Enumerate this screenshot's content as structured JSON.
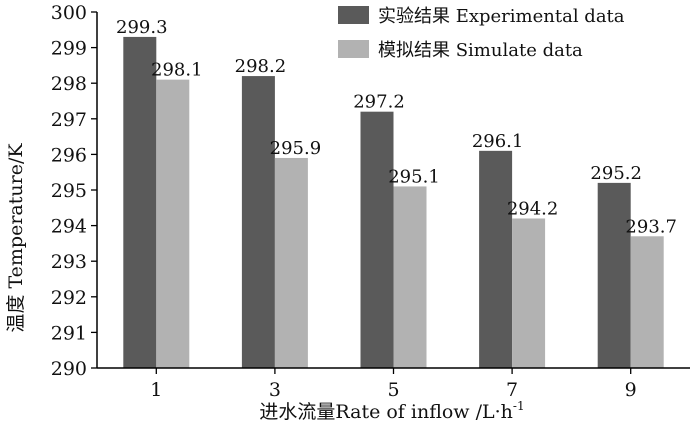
{
  "chart_data": {
    "type": "bar",
    "categories": [
      "1",
      "3",
      "5",
      "7",
      "9"
    ],
    "series": [
      {
        "name": "实验结果 Experimental data",
        "values": [
          299.3,
          298.2,
          297.2,
          296.1,
          295.2
        ],
        "color": "#5a5a5a"
      },
      {
        "name": "模拟结果 Simulate data",
        "values": [
          298.1,
          295.9,
          295.1,
          294.2,
          293.7
        ],
        "color": "#b2b2b2"
      }
    ],
    "data_labels": [
      [
        "299.3",
        "298.2",
        "297.2",
        "296.1",
        "295.2"
      ],
      [
        "298.1",
        "295.9",
        "295.1",
        "294.2",
        "293.7"
      ]
    ],
    "ylabel": "温度 Temperature/K",
    "xlabel": "进水流量Rate of inflow /L·h",
    "xlabel_superscript": "-1",
    "ylim": [
      290,
      300
    ],
    "yticks": [
      "290",
      "291",
      "292",
      "293",
      "294",
      "295",
      "296",
      "297",
      "298",
      "299",
      "300"
    ],
    "grid": false,
    "legend_position": "top-right"
  }
}
